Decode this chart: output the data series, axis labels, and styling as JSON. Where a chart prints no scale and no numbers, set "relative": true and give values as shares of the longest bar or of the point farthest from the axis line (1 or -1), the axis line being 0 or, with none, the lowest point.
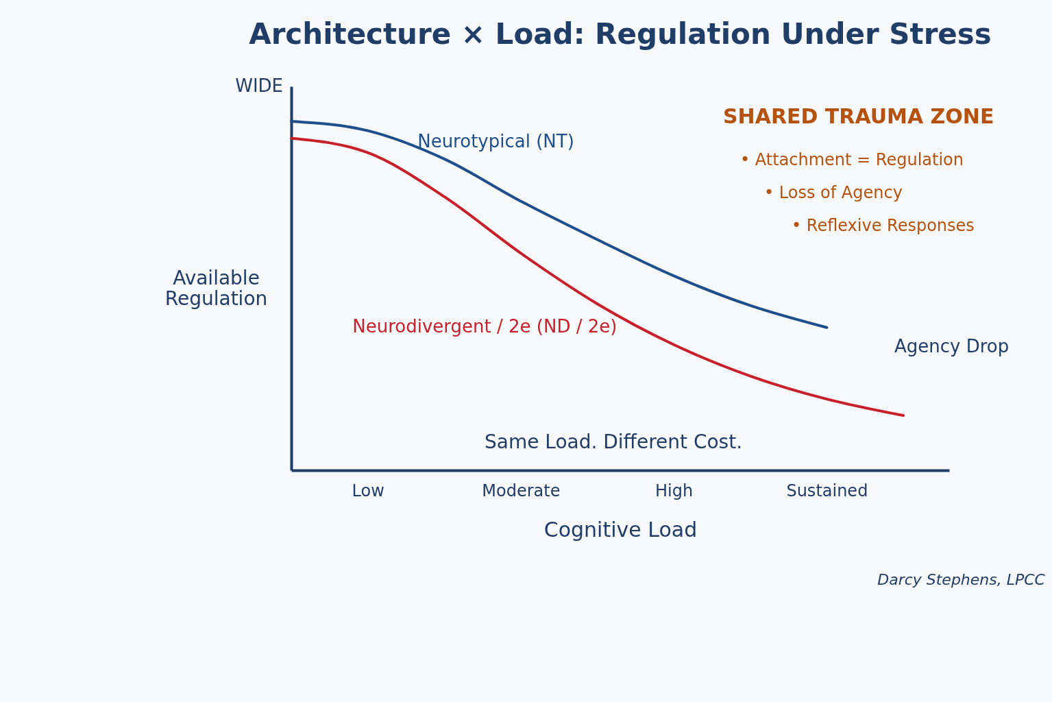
{
  "chart_data": {
    "type": "line",
    "title": "Architecture × Load: Regulation Under Stress",
    "xlabel": "Cognitive Load",
    "ylabel": "Available Regulation",
    "relative": true,
    "legend": false,
    "grid": false,
    "marker": "none",
    "line_style": "solid",
    "categories": [
      null,
      "Low",
      null,
      "Moderate",
      null,
      "High",
      null,
      "Sustained",
      null
    ],
    "series": [
      {
        "name": "Neurotypical (NT)",
        "color": "#1f4e8c",
        "values": [
          1.0,
          0.973,
          0.892,
          0.771,
          0.661,
          0.557,
          0.472,
          0.409,
          null
        ]
      },
      {
        "name": "Neurodivergent / 2e (ND / 2e)",
        "color": "#c8202a",
        "values": [
          0.951,
          0.91,
          0.784,
          0.622,
          0.477,
          0.36,
          0.27,
          0.204,
          0.157
        ]
      }
    ],
    "annotations": [
      "SHARED TRAUMA ZONE",
      "• Attachment = Regulation",
      "• Loss of Agency",
      "• Reflexive Responses",
      "Agency Drop",
      "Same Load. Different Cost.",
      "WIDE",
      "Darcy Stephens, LPCC"
    ]
  }
}
